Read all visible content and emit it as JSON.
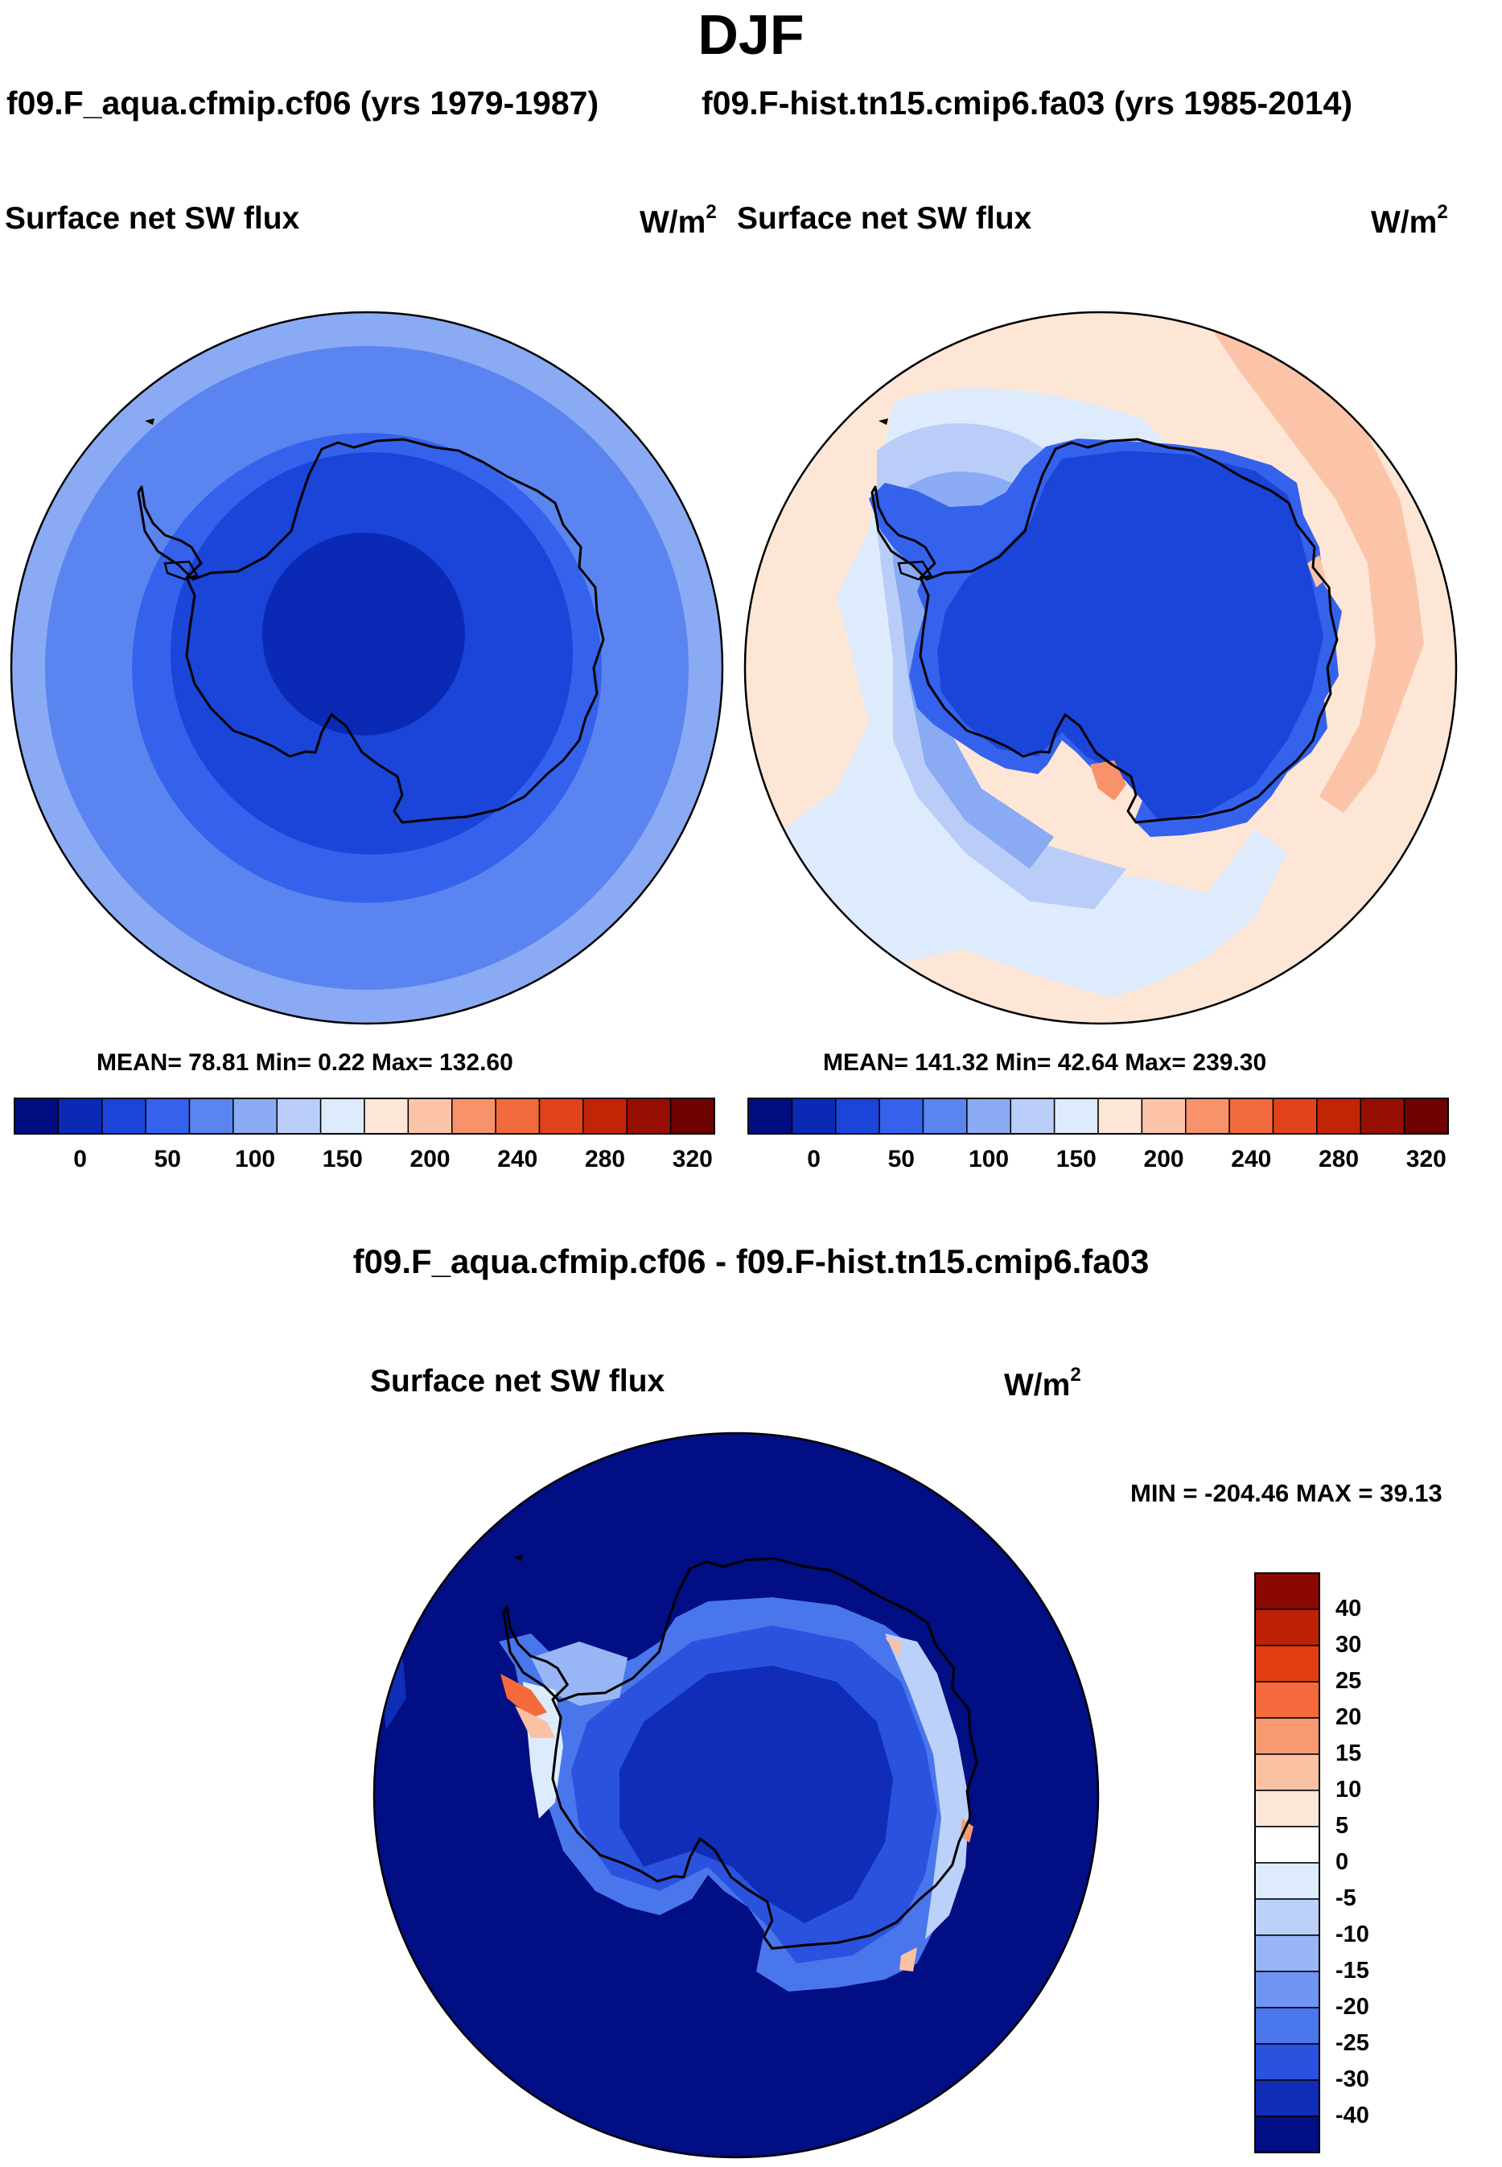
{
  "main_title": "DJF",
  "panels": [
    {
      "case_title": "f09.F_aqua.cfmip.cf06 (yrs 1979-1987)",
      "variable": "Surface net SW flux",
      "units": "W/m",
      "units_exp": "2",
      "stats": "MEAN=  78.81  Min=   0.22  Max= 132.60"
    },
    {
      "case_title": "f09.F-hist.tn15.cmip6.fa03 (yrs 1985-2014)",
      "variable": "Surface net SW flux",
      "units": "W/m",
      "units_exp": "2",
      "stats": "MEAN= 141.32  Min=  42.64  Max= 239.30"
    }
  ],
  "diff_panel": {
    "title": "f09.F_aqua.cfmip.cf06 - f09.F-hist.tn15.cmip6.fa03",
    "variable": "Surface net SW flux",
    "units": "W/m",
    "units_exp": "2",
    "minmax": "MIN = -204.46 MAX =  39.13"
  },
  "chart_data": [
    {
      "type": "polar contour map (south polar stereographic)",
      "title": "Surface net SW flux",
      "case": "f09.F_aqua.cfmip.cf06 (yrs 1979-1987)",
      "units": "W/m2",
      "mean": 78.81,
      "min": 0.22,
      "max": 132.6,
      "colorbar_levels": [
        "0",
        "50",
        "100",
        "150",
        "200",
        "240",
        "280",
        "320"
      ],
      "colorbar_colors": [
        "#010e82",
        "#0a2ab5",
        "#1a45d8",
        "#3462ec",
        "#5a85f0",
        "#8aaaf3",
        "#b9cdf8",
        "#deebfc",
        "#fde6d6",
        "#fbc4a8",
        "#f7926a",
        "#f06a3e",
        "#e2421a",
        "#c22406",
        "#970e02",
        "#6e0202"
      ],
      "description": "Values increase radially outward from the pole: ~0-25 over the interior, ~130 at the rim"
    },
    {
      "type": "polar contour map (south polar stereographic)",
      "title": "Surface net SW flux",
      "case": "f09.F-hist.tn15.cmip6.fa03 (yrs 1985-2014)",
      "units": "W/m2",
      "mean": 141.32,
      "min": 42.64,
      "max": 239.3,
      "colorbar_levels": [
        "0",
        "50",
        "100",
        "150",
        "200",
        "240",
        "280",
        "320"
      ],
      "description": "Antarctic continent ~50-75; surrounding ocean 125-200"
    },
    {
      "type": "polar contour map (difference)",
      "title": "Surface net SW flux",
      "case": "f09.F_aqua.cfmip.cf06 - f09.F-hist.tn15.cmip6.fa03",
      "units": "W/m2",
      "min": -204.46,
      "max": 39.13,
      "colorbar_levels": [
        "40",
        "30",
        "25",
        "20",
        "15",
        "10",
        "5",
        "0",
        "-5",
        "-10",
        "-15",
        "-20",
        "-25",
        "-30",
        "-40"
      ],
      "colorbar_colors_top_to_bottom": [
        "#8b0702",
        "#bd2105",
        "#e23d12",
        "#f46a3c",
        "#f79a72",
        "#fbc1a3",
        "#fde6d6",
        "#ffffff",
        "#ddebfc",
        "#bcd1f9",
        "#98b6f5",
        "#6f94f1",
        "#4a76ec",
        "#2a52df",
        "#0f2db6",
        "#010e84"
      ],
      "description": "Mostly strongly negative (< -40); positive near the Antarctic Peninsula and East Antarctic coast"
    }
  ]
}
